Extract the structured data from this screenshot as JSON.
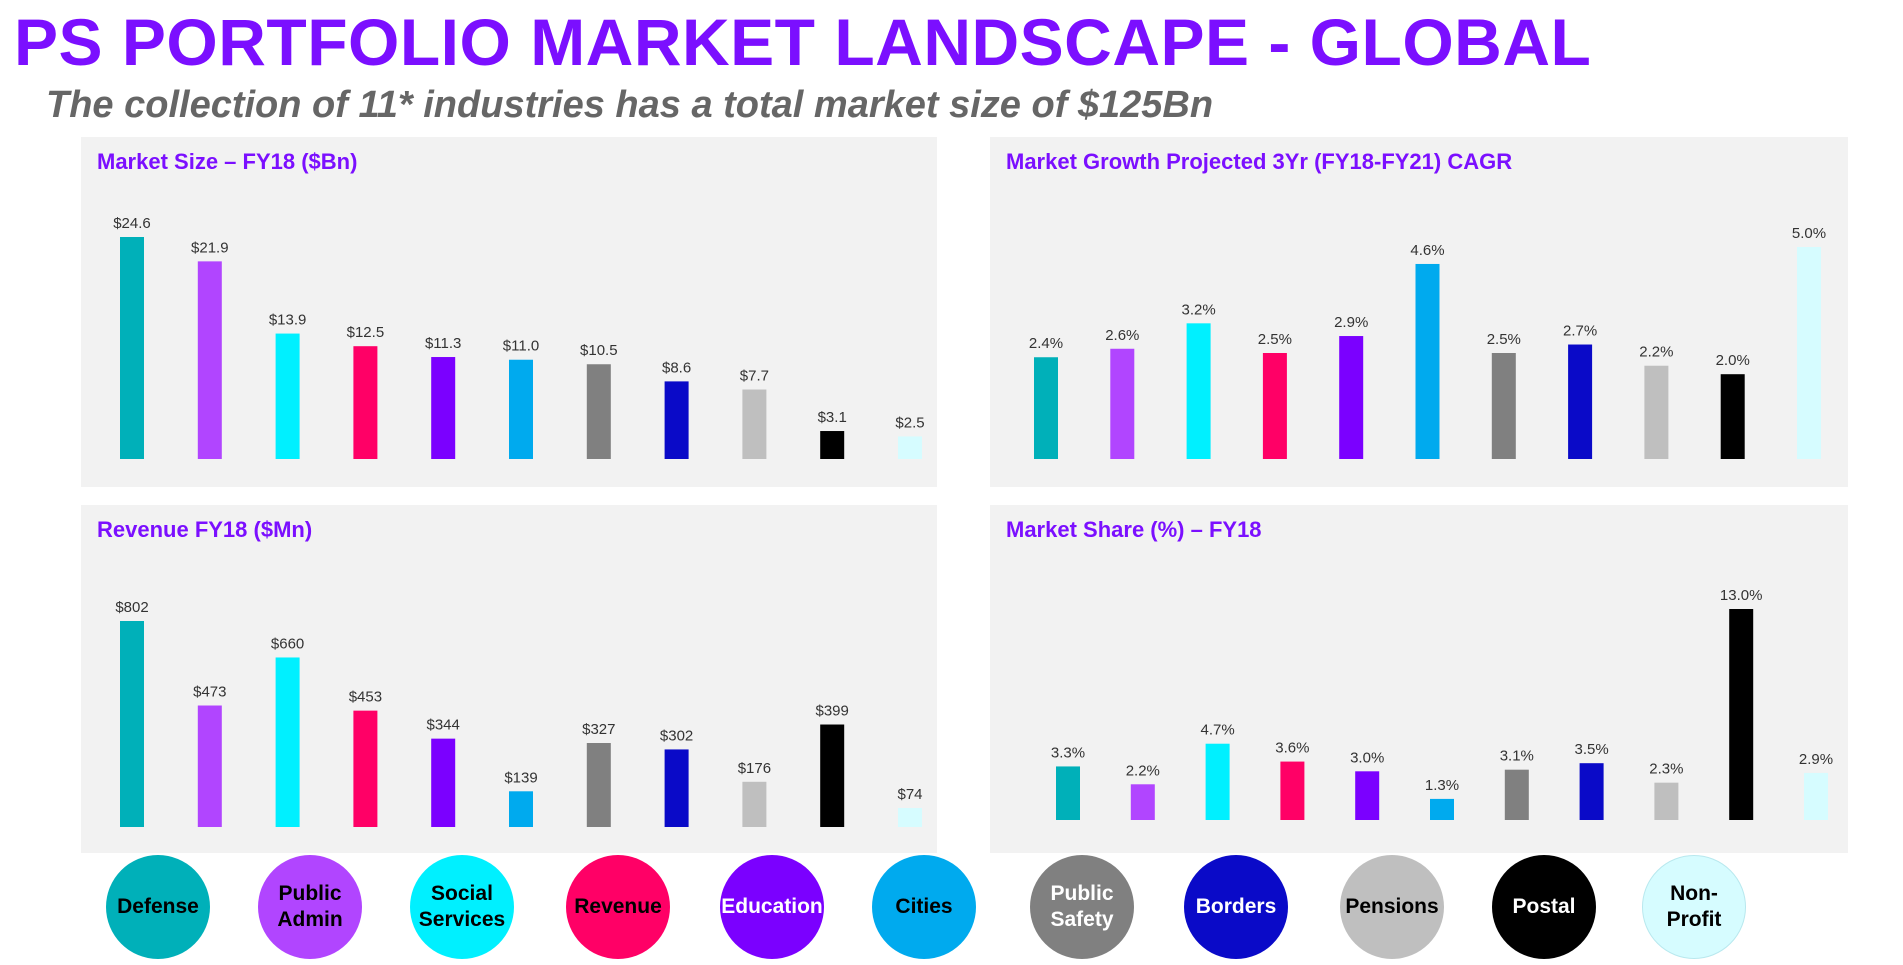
{
  "title": "PS PORTFOLIO MARKET LANDSCAPE - GLOBAL",
  "subtitle": "The collection of 11* industries has a total market size of $125Bn",
  "industries": [
    "Defense",
    "Public Admin",
    "Social Services",
    "Revenue",
    "Education",
    "Cities",
    "Public Safety",
    "Borders",
    "Pensions",
    "Postal",
    "Non-Profit"
  ],
  "legend": [
    {
      "label": "Defense",
      "color": "#00b0b9",
      "text_color": "#000000"
    },
    {
      "label": "Public\nAdmin",
      "color": "#b145ff",
      "text_color": "#000000"
    },
    {
      "label": "Social\nServices",
      "color": "#00f0ff",
      "text_color": "#000000"
    },
    {
      "label": "Revenue",
      "color": "#ff0066",
      "text_color": "#000000"
    },
    {
      "label": "Education",
      "color": "#7b00ff",
      "text_color": "#ffffff"
    },
    {
      "label": "Cities",
      "color": "#00aaee",
      "text_color": "#000000"
    },
    {
      "label": "Public\nSafety",
      "color": "#808080",
      "text_color": "#ffffff"
    },
    {
      "label": "Borders",
      "color": "#0a0ac8",
      "text_color": "#ffffff"
    },
    {
      "label": "Pensions",
      "color": "#bfbfbf",
      "text_color": "#000000"
    },
    {
      "label": "Postal",
      "color": "#000000",
      "text_color": "#ffffff"
    },
    {
      "label": "Non-\nProfit",
      "color": "#d6fcff",
      "text_color": "#000000"
    }
  ],
  "colors": [
    "#00b0b9",
    "#b145ff",
    "#00f0ff",
    "#ff0066",
    "#7b00ff",
    "#00aaee",
    "#808080",
    "#0a0ac8",
    "#bfbfbf",
    "#000000",
    "#d6fcff"
  ],
  "chart_data": [
    {
      "type": "bar",
      "title": "Market Size – FY18 ($Bn)",
      "categories": [
        "Defense",
        "Public Admin",
        "Social Services",
        "Revenue",
        "Education",
        "Cities",
        "Public Safety",
        "Borders",
        "Pensions",
        "Postal",
        "Non-Profit"
      ],
      "values": [
        24.6,
        21.9,
        13.9,
        12.5,
        11.3,
        11.0,
        10.5,
        8.6,
        7.7,
        3.1,
        2.5
      ],
      "labels": [
        "$24.6",
        "$21.9",
        "$13.9",
        "$12.5",
        "$11.3",
        "$11.0",
        "$10.5",
        "$8.6",
        "$7.7",
        "$3.1",
        "$2.5"
      ],
      "ylim": [
        0,
        24.6
      ]
    },
    {
      "type": "bar",
      "title": "Market Growth Projected 3Yr (FY18-FY21) CAGR",
      "categories": [
        "Defense",
        "Public Admin",
        "Social Services",
        "Revenue",
        "Education",
        "Cities",
        "Public Safety",
        "Borders",
        "Pensions",
        "Postal",
        "Non-Profit"
      ],
      "values": [
        2.4,
        2.6,
        3.2,
        2.5,
        2.9,
        4.6,
        2.5,
        2.7,
        2.2,
        2.0,
        5.0
      ],
      "labels": [
        "2.4%",
        "2.6%",
        "3.2%",
        "2.5%",
        "2.9%",
        "4.6%",
        "2.5%",
        "2.7%",
        "2.2%",
        "2.0%",
        "5.0%"
      ],
      "ylim": [
        0,
        5.0
      ]
    },
    {
      "type": "bar",
      "title": "Revenue FY18 ($Mn)",
      "categories": [
        "Defense",
        "Public Admin",
        "Social Services",
        "Revenue",
        "Education",
        "Cities",
        "Public Safety",
        "Borders",
        "Pensions",
        "Postal",
        "Non-Profit"
      ],
      "values": [
        802,
        473,
        660,
        453,
        344,
        139,
        327,
        302,
        176,
        399,
        74
      ],
      "labels": [
        "$802",
        "$473",
        "$660",
        "$453",
        "$344",
        "$139",
        "$327",
        "$302",
        "$176",
        "$399",
        "$74"
      ],
      "ylim": [
        0,
        802
      ]
    },
    {
      "type": "bar",
      "title": "Market Share (%) – FY18",
      "categories": [
        "Defense",
        "Public Admin",
        "Social Services",
        "Revenue",
        "Education",
        "Cities",
        "Public Safety",
        "Borders",
        "Pensions",
        "Postal",
        "Non-Profit"
      ],
      "values": [
        3.3,
        2.2,
        4.7,
        3.6,
        3.0,
        1.3,
        3.1,
        3.5,
        2.3,
        13.0,
        2.9
      ],
      "labels": [
        "3.3%",
        "2.2%",
        "4.7%",
        "3.6%",
        "3.0%",
        "1.3%",
        "3.1%",
        "3.5%",
        "2.3%",
        "13.0%",
        "2.9%"
      ],
      "ylim": [
        0,
        13.0
      ]
    }
  ]
}
